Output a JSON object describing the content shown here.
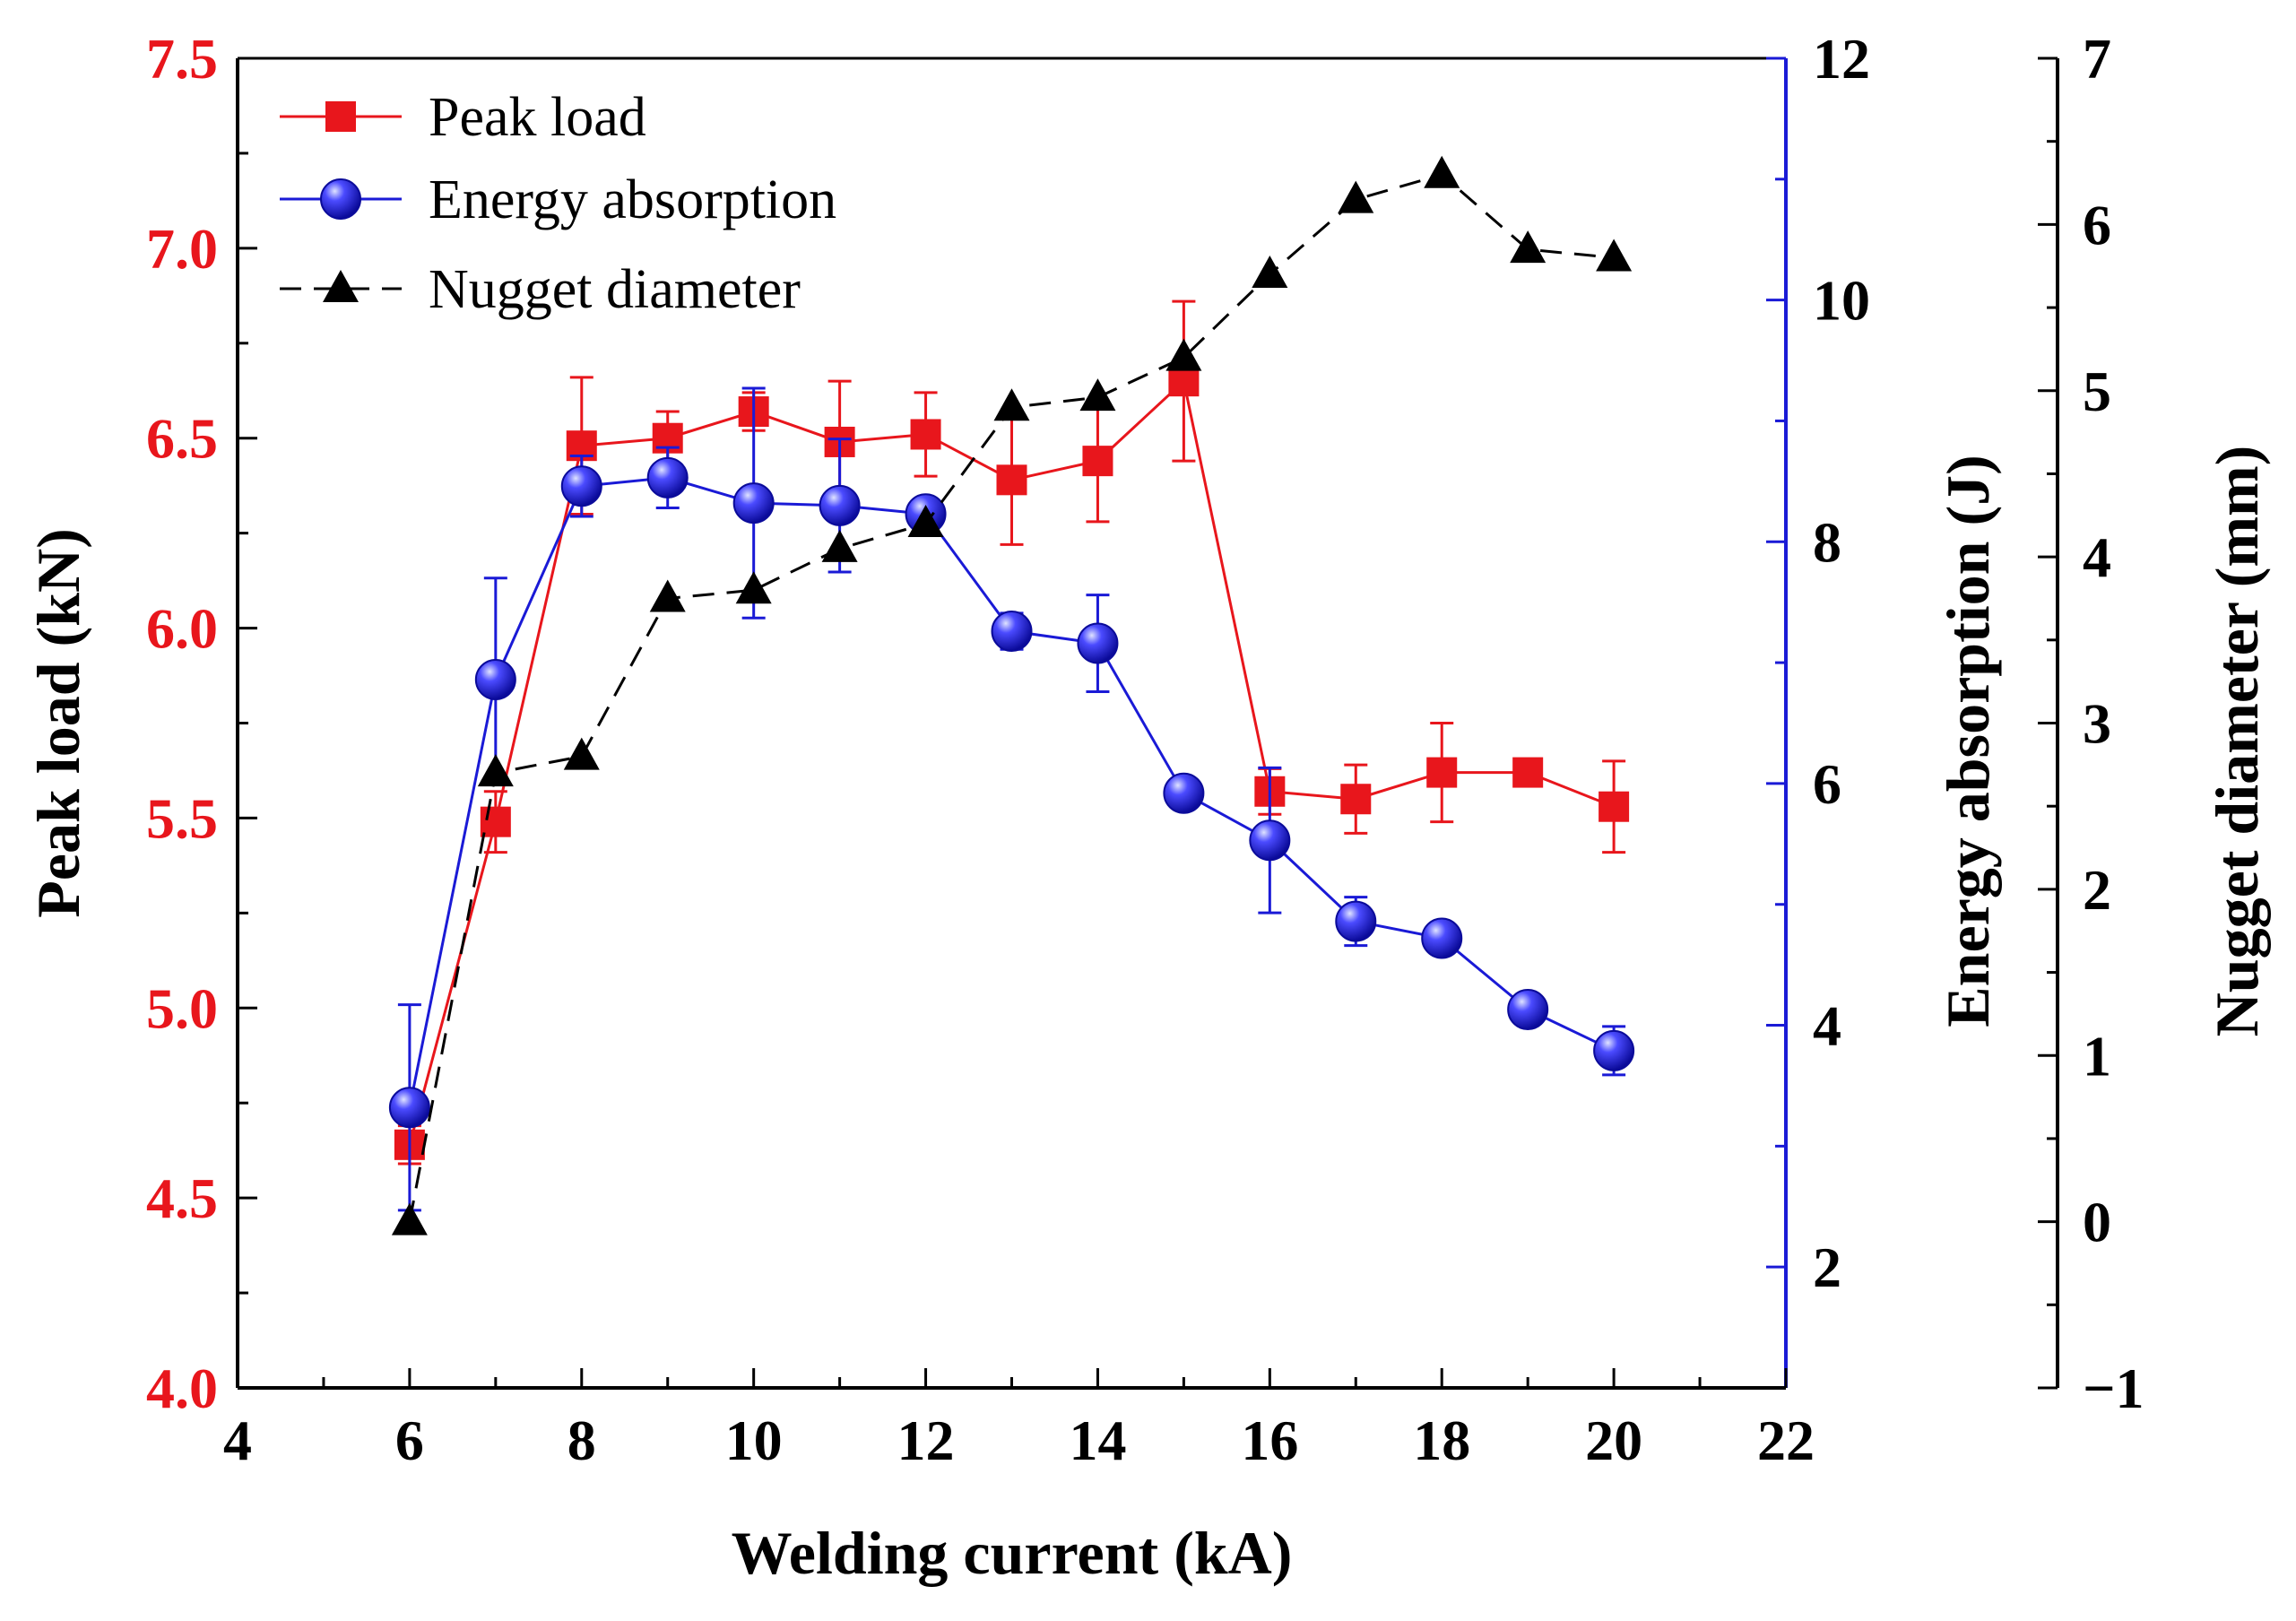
{
  "chart_data": {
    "type": "line",
    "title": "",
    "xlabel": "Welding current (kA)",
    "xlim": [
      4,
      22
    ],
    "xticks": [
      4,
      6,
      8,
      10,
      12,
      14,
      16,
      18,
      20,
      22
    ],
    "x": [
      6,
      7,
      8,
      9,
      10,
      11,
      12,
      13,
      14,
      15,
      16,
      17,
      18,
      19,
      20
    ],
    "axes": {
      "left": {
        "label": "Peak load (kN)",
        "range": [
          4.0,
          7.5
        ],
        "ticks": [
          "4.0",
          "4.5",
          "5.0",
          "5.5",
          "6.0",
          "6.5",
          "7.0",
          "7.5"
        ],
        "color": "#e8161c"
      },
      "right1": {
        "label": "Energy absorption (J)",
        "range": [
          1,
          12
        ],
        "ticks": [
          "2",
          "4",
          "6",
          "8",
          "10",
          "12"
        ],
        "color": "#1a1ad6"
      },
      "right2": {
        "label": "Nugget diameter (mm)",
        "range": [
          -1,
          7
        ],
        "ticks": [
          "−1",
          "0",
          "1",
          "2",
          "3",
          "4",
          "5",
          "6",
          "7"
        ],
        "color": "#000000"
      }
    },
    "series": [
      {
        "name": "Peak load",
        "axis": "left",
        "color": "#e8161c",
        "marker": "square",
        "values": [
          4.64,
          5.49,
          6.48,
          6.5,
          6.57,
          6.49,
          6.51,
          6.39,
          6.44,
          6.65,
          5.57,
          5.55,
          5.62,
          5.62,
          5.53
        ],
        "errors": [
          0.05,
          0.08,
          0.18,
          0.07,
          0.05,
          0.16,
          0.11,
          0.17,
          0.16,
          0.21,
          0.06,
          0.09,
          0.13,
          0.02,
          0.12
        ]
      },
      {
        "name": "Energy absorption",
        "axis": "right1",
        "color": "#1a1ad6",
        "marker": "circle",
        "values": [
          3.32,
          6.86,
          8.46,
          8.53,
          8.32,
          8.3,
          8.23,
          7.26,
          7.16,
          5.92,
          5.53,
          4.86,
          4.72,
          4.13,
          3.79
        ],
        "errors": [
          0.85,
          0.84,
          0.25,
          0.25,
          0.95,
          0.55,
          0.05,
          0.15,
          0.4,
          0.03,
          0.6,
          0.2,
          0.03,
          0.03,
          0.2
        ]
      },
      {
        "name": "Nugget diameter",
        "axis": "right2",
        "color": "#000000",
        "marker": "triangle",
        "dashed": true,
        "values": [
          0.0,
          2.7,
          2.8,
          3.75,
          3.8,
          4.05,
          4.2,
          4.9,
          4.96,
          5.2,
          5.7,
          6.15,
          6.3,
          5.85,
          5.8
        ],
        "errors": [
          0,
          0,
          0,
          0,
          0,
          0,
          0,
          0,
          0,
          0,
          0,
          0,
          0,
          0,
          0
        ]
      }
    ],
    "legend": {
      "position": "top-left",
      "entries": [
        "Peak load",
        "Energy absorption",
        "Nugget diameter"
      ]
    }
  }
}
